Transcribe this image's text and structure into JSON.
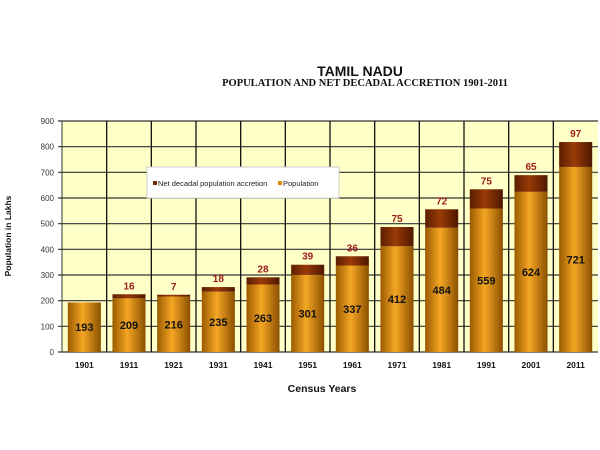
{
  "chart_data": {
    "type": "bar",
    "title": "TAMIL NADU",
    "subtitle": "POPULATION AND NET DECADAL ACCRETION 1901-2011",
    "xlabel": "Census Years",
    "ylabel": "Population in Lakhs",
    "ylim": [
      0,
      900
    ],
    "yticks": [
      0,
      100,
      200,
      300,
      400,
      500,
      600,
      700,
      800,
      900
    ],
    "categories": [
      "1901",
      "1911",
      "1921",
      "1931",
      "1941",
      "1951",
      "1961",
      "1971",
      "1981",
      "1991",
      "2001",
      "2011"
    ],
    "series": [
      {
        "name": "Population",
        "values": [
          193,
          209,
          216,
          235,
          263,
          301,
          337,
          412,
          484,
          559,
          624,
          721
        ],
        "color": "#e08a00"
      },
      {
        "name": "Net decadal population accretion",
        "values": [
          null,
          16,
          7,
          18,
          28,
          39,
          36,
          75,
          72,
          75,
          65,
          97
        ],
        "color": "#7a2a00"
      }
    ],
    "legend_items": [
      "Net decadal population accretion",
      "Population"
    ],
    "grid": true,
    "stacked": true
  }
}
